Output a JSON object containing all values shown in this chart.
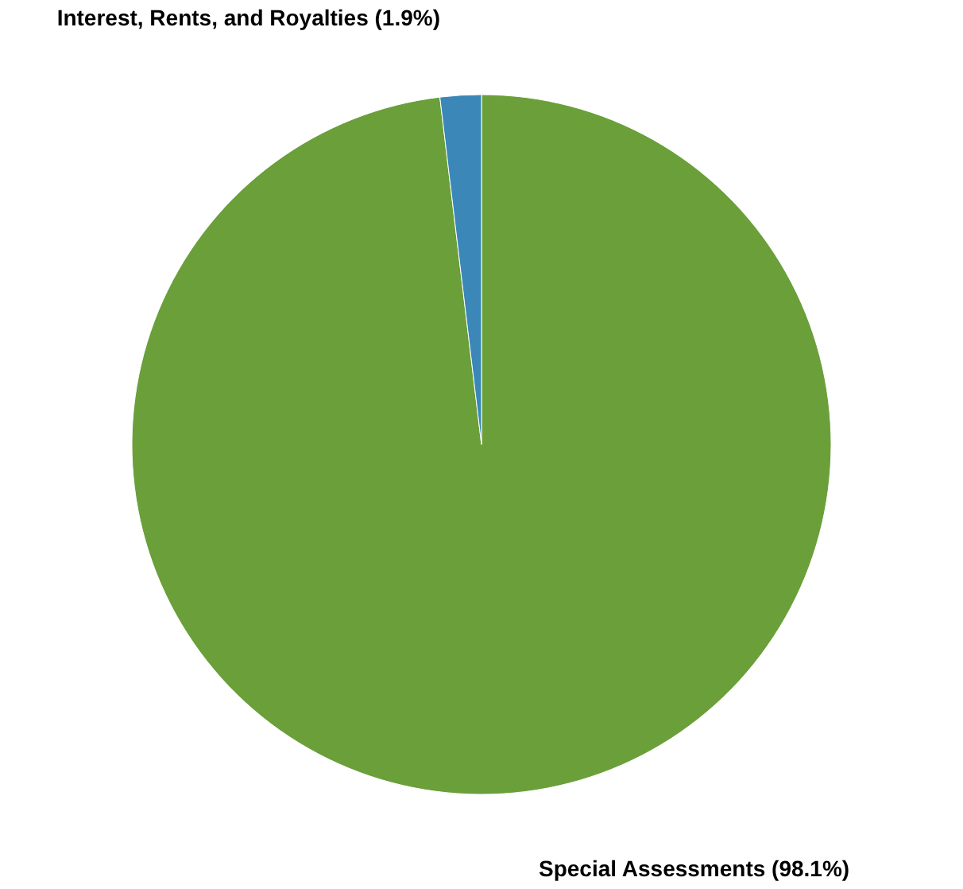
{
  "chart_data": {
    "type": "pie",
    "categories": [
      "Special Assessments",
      "Interest, Rents, and Royalties"
    ],
    "values": [
      98.1,
      1.9
    ],
    "colors": [
      "#6a9f3a",
      "#3a87b8"
    ],
    "value_labels": [
      "(98.1%)",
      "(1.9%)"
    ],
    "legend": false
  }
}
